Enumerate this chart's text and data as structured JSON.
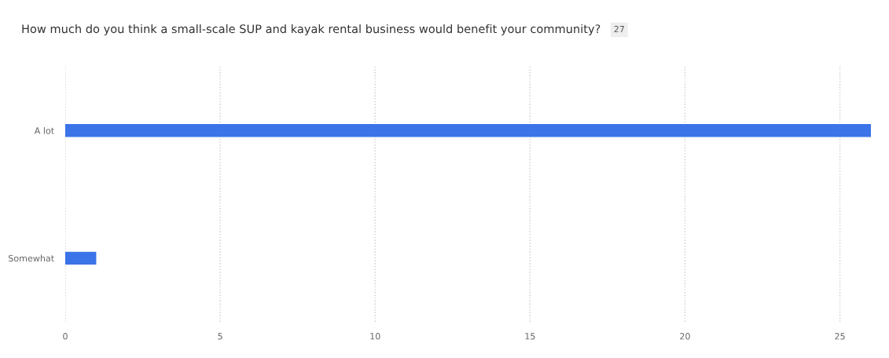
{
  "chart_data": {
    "type": "bar",
    "orientation": "horizontal",
    "title": "How much do you think a small-scale SUP and kayak rental business would benefit your community?",
    "annotations": [
      "27"
    ],
    "categories": [
      "A lot",
      "Somewhat"
    ],
    "values": [
      26,
      1
    ],
    "color": "#3b73e8",
    "xlim": [
      0,
      26
    ],
    "xticks": [
      0,
      5,
      10,
      15,
      20,
      25
    ],
    "grid": "x",
    "line_style": "dotted"
  }
}
